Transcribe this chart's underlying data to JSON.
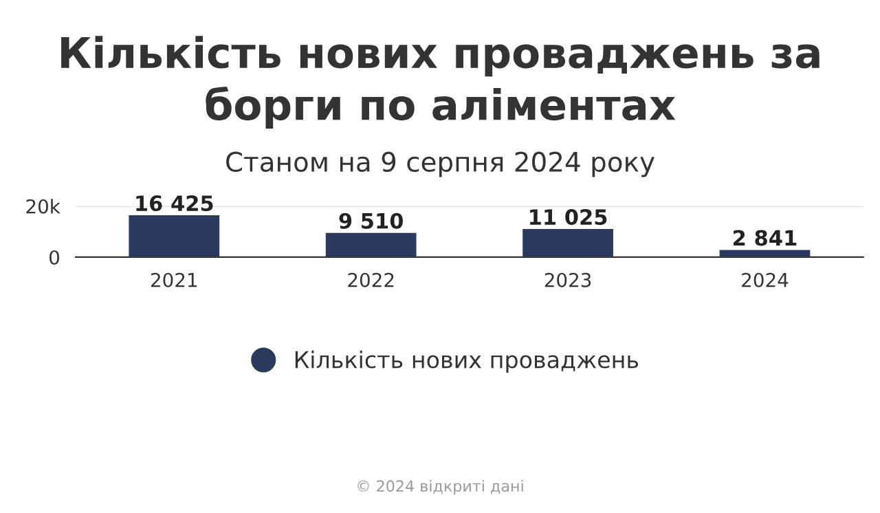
{
  "chart_data": {
    "type": "bar",
    "title": "Кількість нових проваджень за\nборги по аліментах",
    "subtitle": "Станом на 9 серпня 2024 року",
    "categories": [
      "2021",
      "2022",
      "2023",
      "2024"
    ],
    "series": [
      {
        "name": "Кількість нових проваджень",
        "color": "#2b3a5c",
        "values": [
          16425,
          9510,
          11025,
          2841
        ]
      }
    ],
    "value_labels": [
      "16 425",
      "9 510",
      "11 025",
      "2 841"
    ],
    "ylim": [
      0,
      20000
    ],
    "yticks": [
      0,
      {
        "value": 20000,
        "label": "20k"
      }
    ],
    "grid": "y",
    "legend": "bottom",
    "annotations": [
      "© 2024 відкриті дані"
    ]
  }
}
